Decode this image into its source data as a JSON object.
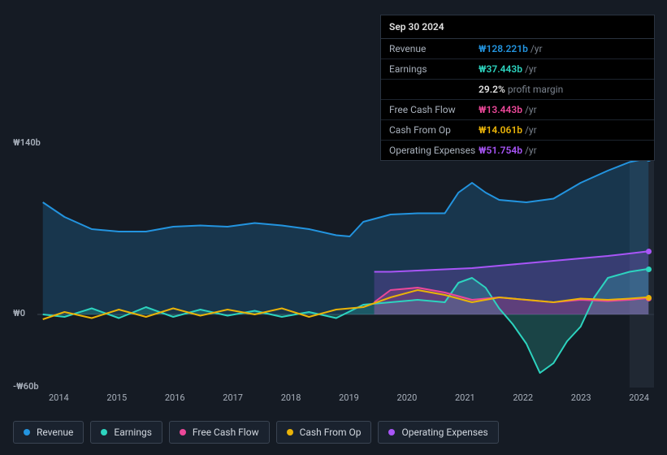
{
  "tooltip": {
    "date": "Sep 30 2024",
    "rows": [
      {
        "label": "Revenue",
        "value": "₩128.221b",
        "suffix": "/yr",
        "color": "#2394df"
      },
      {
        "label": "Earnings",
        "value": "₩37.443b",
        "suffix": "/yr",
        "color": "#2dd4bf",
        "sub_pct": "29.2%",
        "sub_text": "profit margin"
      },
      {
        "label": "Free Cash Flow",
        "value": "₩13.443b",
        "suffix": "/yr",
        "color": "#ec4899"
      },
      {
        "label": "Cash From Op",
        "value": "₩14.061b",
        "suffix": "/yr",
        "color": "#eab308"
      },
      {
        "label": "Operating Expenses",
        "value": "₩51.754b",
        "suffix": "/yr",
        "color": "#a855f7"
      }
    ]
  },
  "chart": {
    "background": "#151b24",
    "y_axis": {
      "min": -60,
      "max": 140,
      "unit": "b",
      "ticks": [
        {
          "v": 140,
          "label": "₩140b"
        },
        {
          "v": 0,
          "label": "₩0"
        },
        {
          "v": -60,
          "label": "-₩60b"
        }
      ],
      "label_fontsize": 11,
      "label_color": "#a8b0bb"
    },
    "x_axis": {
      "labels": [
        "2014",
        "2015",
        "2016",
        "2017",
        "2018",
        "2019",
        "2020",
        "2021",
        "2022",
        "2023",
        "2024"
      ],
      "min": 2013.5,
      "max": 2024.85,
      "label_fontsize": 11,
      "label_color": "#a8b0bb"
    },
    "highlight_band": {
      "from": 2024.4,
      "to": 2024.85,
      "color": "#2a3340",
      "opacity": 0.55
    },
    "series": [
      {
        "id": "revenue",
        "name": "Revenue",
        "color": "#2394df",
        "line_width": 2,
        "fill": true,
        "data": [
          [
            2013.6,
            92
          ],
          [
            2014.0,
            80
          ],
          [
            2014.5,
            70
          ],
          [
            2015.0,
            68
          ],
          [
            2015.5,
            68
          ],
          [
            2016.0,
            72
          ],
          [
            2016.5,
            73
          ],
          [
            2017.0,
            72
          ],
          [
            2017.5,
            75
          ],
          [
            2018.0,
            73
          ],
          [
            2018.5,
            70
          ],
          [
            2019.0,
            65
          ],
          [
            2019.25,
            64
          ],
          [
            2019.5,
            76
          ],
          [
            2020.0,
            82
          ],
          [
            2020.5,
            83
          ],
          [
            2021.0,
            83
          ],
          [
            2021.25,
            100
          ],
          [
            2021.5,
            108
          ],
          [
            2021.75,
            100
          ],
          [
            2022.0,
            94
          ],
          [
            2022.5,
            92
          ],
          [
            2023.0,
            95
          ],
          [
            2023.5,
            108
          ],
          [
            2024.0,
            118
          ],
          [
            2024.4,
            125
          ],
          [
            2024.75,
            128.2
          ]
        ]
      },
      {
        "id": "operating_expenses",
        "name": "Operating Expenses",
        "color": "#a855f7",
        "line_width": 2,
        "fill": true,
        "start": 2019.7,
        "data": [
          [
            2019.7,
            35
          ],
          [
            2020.0,
            35
          ],
          [
            2020.5,
            36
          ],
          [
            2021.0,
            37
          ],
          [
            2021.5,
            38
          ],
          [
            2022.0,
            40
          ],
          [
            2022.5,
            42
          ],
          [
            2023.0,
            44
          ],
          [
            2023.5,
            46
          ],
          [
            2024.0,
            48
          ],
          [
            2024.4,
            50
          ],
          [
            2024.75,
            51.8
          ]
        ]
      },
      {
        "id": "earnings",
        "name": "Earnings",
        "color": "#2dd4bf",
        "line_width": 2,
        "fill": true,
        "data": [
          [
            2013.6,
            0
          ],
          [
            2014.0,
            -2
          ],
          [
            2014.5,
            5
          ],
          [
            2015.0,
            -3
          ],
          [
            2015.5,
            6
          ],
          [
            2016.0,
            -2
          ],
          [
            2016.5,
            4
          ],
          [
            2017.0,
            -1
          ],
          [
            2017.5,
            3
          ],
          [
            2018.0,
            -2
          ],
          [
            2018.5,
            2
          ],
          [
            2019.0,
            -3
          ],
          [
            2019.5,
            8
          ],
          [
            2020.0,
            10
          ],
          [
            2020.5,
            12
          ],
          [
            2021.0,
            10
          ],
          [
            2021.25,
            26
          ],
          [
            2021.5,
            30
          ],
          [
            2021.75,
            22
          ],
          [
            2022.0,
            5
          ],
          [
            2022.25,
            -8
          ],
          [
            2022.5,
            -24
          ],
          [
            2022.75,
            -48
          ],
          [
            2023.0,
            -40
          ],
          [
            2023.25,
            -22
          ],
          [
            2023.5,
            -10
          ],
          [
            2023.75,
            14
          ],
          [
            2024.0,
            30
          ],
          [
            2024.4,
            35
          ],
          [
            2024.75,
            37.4
          ]
        ]
      },
      {
        "id": "free_cash_flow",
        "name": "Free Cash Flow",
        "color": "#ec4899",
        "line_width": 2,
        "fill": true,
        "start": 2019.7,
        "data": [
          [
            2019.7,
            10
          ],
          [
            2020.0,
            20
          ],
          [
            2020.5,
            22
          ],
          [
            2021.0,
            18
          ],
          [
            2021.5,
            12
          ],
          [
            2022.0,
            14
          ],
          [
            2022.5,
            12
          ],
          [
            2023.0,
            10
          ],
          [
            2023.5,
            12
          ],
          [
            2024.0,
            11
          ],
          [
            2024.4,
            12
          ],
          [
            2024.75,
            13.4
          ]
        ]
      },
      {
        "id": "cash_from_op",
        "name": "Cash From Op",
        "color": "#eab308",
        "line_width": 2,
        "fill": false,
        "data": [
          [
            2013.6,
            -4
          ],
          [
            2014.0,
            2
          ],
          [
            2014.5,
            -3
          ],
          [
            2015.0,
            4
          ],
          [
            2015.5,
            -2
          ],
          [
            2016.0,
            5
          ],
          [
            2016.5,
            -1
          ],
          [
            2017.0,
            4
          ],
          [
            2017.5,
            0
          ],
          [
            2018.0,
            5
          ],
          [
            2018.5,
            -2
          ],
          [
            2019.0,
            4
          ],
          [
            2019.5,
            6
          ],
          [
            2020.0,
            14
          ],
          [
            2020.5,
            20
          ],
          [
            2021.0,
            16
          ],
          [
            2021.5,
            10
          ],
          [
            2022.0,
            14
          ],
          [
            2022.5,
            12
          ],
          [
            2023.0,
            10
          ],
          [
            2023.5,
            13
          ],
          [
            2024.0,
            12
          ],
          [
            2024.4,
            13
          ],
          [
            2024.75,
            14.1
          ]
        ]
      }
    ],
    "legend": {
      "items": [
        {
          "id": "revenue",
          "label": "Revenue",
          "color": "#2394df"
        },
        {
          "id": "earnings",
          "label": "Earnings",
          "color": "#2dd4bf"
        },
        {
          "id": "free_cash_flow",
          "label": "Free Cash Flow",
          "color": "#ec4899"
        },
        {
          "id": "cash_from_op",
          "label": "Cash From Op",
          "color": "#eab308"
        },
        {
          "id": "operating_expenses",
          "label": "Operating Expenses",
          "color": "#a855f7"
        }
      ],
      "item_bg": "#1a222e",
      "item_border": "#3a4452",
      "fontsize": 12
    },
    "end_markers": true
  }
}
